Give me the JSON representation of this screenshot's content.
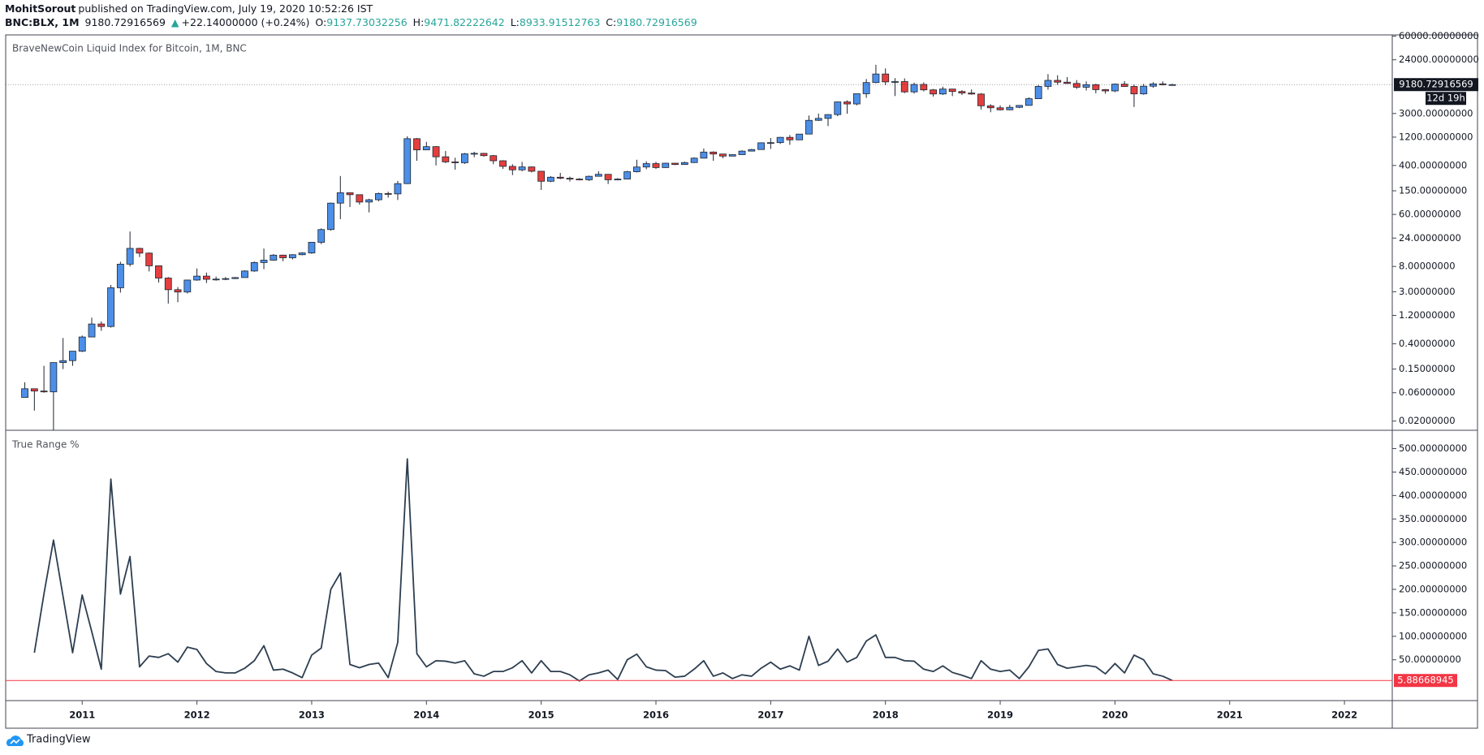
{
  "header": {
    "author": "MohitSorout",
    "published": "published on TradingView.com, July 19, 2020 10:52:26 IST",
    "symbol": "BNC:BLX, 1M",
    "direction": "▲",
    "change": "+22.14000000 (+0.24%)",
    "open_label": "O:",
    "high_label": "H:",
    "low_label": "L:",
    "close_label": "C:"
  },
  "footer": {
    "brand": "TradingView"
  },
  "chart_data": [
    {
      "type": "candlestick",
      "title": "BraveNewCoin Liquid Index for Bitcoin, 1M, BNC",
      "log_scale": true,
      "up_color": "#4c8fe8",
      "down_color": "#e53e3e",
      "outline_color": "#1e2530",
      "countdown_label": "12d 19h",
      "xlim": [
        "2010-05",
        "2022-06"
      ],
      "ylim": [
        0.014,
        63000
      ],
      "yticks": [
        {
          "value": 0.02,
          "label": "0.02000000"
        },
        {
          "value": 0.06,
          "label": "0.06000000"
        },
        {
          "value": 0.15,
          "label": "0.15000000"
        },
        {
          "value": 0.4,
          "label": "0.40000000"
        },
        {
          "value": 1.2,
          "label": "1.20000000"
        },
        {
          "value": 3,
          "label": "3.00000000"
        },
        {
          "value": 8,
          "label": "8.00000000"
        },
        {
          "value": 24,
          "label": "24.00000000"
        },
        {
          "value": 60,
          "label": "60.00000000"
        },
        {
          "value": 150,
          "label": "150.00000000"
        },
        {
          "value": 400,
          "label": "400.00000000"
        },
        {
          "value": 1200,
          "label": "1200.00000000"
        },
        {
          "value": 3000,
          "label": "3000.00000000"
        },
        {
          "value": 24000,
          "label": "24000.00000000"
        },
        {
          "value": 60000,
          "label": "60000.00000000"
        }
      ],
      "x": [
        "2010-07",
        "2010-08",
        "2010-09",
        "2010-10",
        "2010-11",
        "2010-12",
        "2011-01",
        "2011-02",
        "2011-03",
        "2011-04",
        "2011-05",
        "2011-06",
        "2011-07",
        "2011-08",
        "2011-09",
        "2011-10",
        "2011-11",
        "2011-12",
        "2012-01",
        "2012-02",
        "2012-03",
        "2012-04",
        "2012-05",
        "2012-06",
        "2012-07",
        "2012-08",
        "2012-09",
        "2012-10",
        "2012-11",
        "2012-12",
        "2013-01",
        "2013-02",
        "2013-03",
        "2013-04",
        "2013-05",
        "2013-06",
        "2013-07",
        "2013-08",
        "2013-09",
        "2013-10",
        "2013-11",
        "2013-12",
        "2014-01",
        "2014-02",
        "2014-03",
        "2014-04",
        "2014-05",
        "2014-06",
        "2014-07",
        "2014-08",
        "2014-09",
        "2014-10",
        "2014-11",
        "2014-12",
        "2015-01",
        "2015-02",
        "2015-03",
        "2015-04",
        "2015-05",
        "2015-06",
        "2015-07",
        "2015-08",
        "2015-09",
        "2015-10",
        "2015-11",
        "2015-12",
        "2016-01",
        "2016-02",
        "2016-03",
        "2016-04",
        "2016-05",
        "2016-06",
        "2016-07",
        "2016-08",
        "2016-09",
        "2016-10",
        "2016-11",
        "2016-12",
        "2017-01",
        "2017-02",
        "2017-03",
        "2017-04",
        "2017-05",
        "2017-06",
        "2017-07",
        "2017-08",
        "2017-09",
        "2017-10",
        "2017-11",
        "2017-12",
        "2018-01",
        "2018-02",
        "2018-03",
        "2018-04",
        "2018-05",
        "2018-06",
        "2018-07",
        "2018-08",
        "2018-09",
        "2018-10",
        "2018-11",
        "2018-12",
        "2019-01",
        "2019-02",
        "2019-03",
        "2019-04",
        "2019-05",
        "2019-06",
        "2019-07",
        "2019-08",
        "2019-09",
        "2019-10",
        "2019-11",
        "2019-12",
        "2020-01",
        "2020-02",
        "2020-03",
        "2020-04",
        "2020-05",
        "2020-06",
        "2020-07"
      ],
      "open": [
        0.05,
        0.07,
        0.064,
        0.062,
        0.193,
        0.208,
        0.3,
        0.52,
        0.86,
        0.78,
        3.5,
        8.74,
        16.1,
        13.4,
        8.2,
        5.1,
        3.25,
        2.97,
        4.72,
        5.5,
        4.86,
        4.9,
        5,
        5.2,
        6.7,
        9.3,
        10.2,
        12.4,
        11.2,
        12.6,
        13.5,
        20.4,
        33.4,
        93,
        139,
        129,
        97,
        106,
        135,
        133,
        198,
        1130,
        732,
        830,
        560,
        460,
        445,
        628,
        640,
        585,
        480,
        386,
        338,
        378,
        320,
        217,
        254,
        244,
        236,
        230,
        263,
        284,
        230,
        236,
        314,
        377,
        430,
        369,
        437,
        416,
        448,
        531,
        673,
        624,
        575,
        609,
        698,
        742,
        963,
        970,
        1190,
        1080,
        1350,
        2300,
        2480,
        2875,
        4700,
        4340,
        6450,
        9950,
        13850,
        10200,
        10330,
        6930,
        9240,
        7490,
        6390,
        7730,
        7030,
        6630,
        6370,
        4040,
        3740,
        3460,
        3810,
        4100,
        5320,
        8560,
        10820,
        10090,
        9600,
        8290,
        9150,
        7560,
        7190,
        9350,
        8540,
        6410,
        8630,
        9450,
        9137.73032256
      ],
      "high": [
        0.09,
        0.07,
        0.17,
        0.19,
        0.5,
        0.3,
        0.55,
        1.1,
        0.95,
        3.9,
        9.6,
        31,
        16.5,
        13.8,
        8.3,
        5.3,
        3.6,
        4.8,
        7.4,
        6.3,
        5.4,
        5.3,
        5.3,
        6.9,
        9.7,
        16,
        12.9,
        12.6,
        12.8,
        13.9,
        20.5,
        35,
        95,
        266,
        140,
        130,
        110,
        140,
        145,
        220,
        1240,
        1160,
        1000,
        850,
        700,
        540,
        650,
        680,
        650,
        600,
        490,
        420,
        460,
        385,
        320,
        265,
        300,
        260,
        245,
        270,
        320,
        285,
        245,
        325,
        500,
        470,
        460,
        445,
        440,
        465,
        550,
        770,
        690,
        630,
        610,
        720,
        760,
        980,
        1160,
        1210,
        1300,
        1360,
        2770,
        2990,
        2920,
        4750,
        5000,
        6450,
        11400,
        19800,
        17200,
        11800,
        11700,
        9900,
        10000,
        7760,
        8480,
        7750,
        7400,
        7600,
        6600,
        4300,
        4100,
        4200,
        4150,
        5620,
        9060,
        13800,
        13200,
        12300,
        10950,
        10400,
        9500,
        7750,
        9600,
        10500,
        9180,
        9450,
        10070,
        10400,
        9471.82222642
      ],
      "low": [
        0.05,
        0.03,
        0.06,
        0.01,
        0.15,
        0.17,
        0.29,
        0.52,
        0.66,
        0.75,
        2.9,
        8,
        11.5,
        6.6,
        4.3,
        1.9,
        2,
        2.8,
        4.6,
        4.2,
        4.6,
        4.7,
        4.9,
        5.2,
        6.5,
        7.2,
        10,
        9.8,
        10.5,
        12.3,
        13,
        19,
        32,
        50,
        80,
        88,
        65,
        100,
        115,
        105,
        195,
        480,
        725,
        400,
        440,
        340,
        425,
        550,
        565,
        420,
        350,
        275,
        320,
        305,
        155,
        210,
        235,
        215,
        225,
        220,
        260,
        195,
        225,
        235,
        305,
        345,
        350,
        365,
        405,
        410,
        440,
        525,
        480,
        530,
        570,
        605,
        690,
        740,
        760,
        920,
        890,
        1070,
        1340,
        2250,
        1840,
        2700,
        2970,
        4110,
        5500,
        9700,
        9000,
        5900,
        6600,
        6500,
        7050,
        5780,
        6150,
        5880,
        6130,
        6200,
        3500,
        3150,
        3370,
        3400,
        3700,
        4070,
        5320,
        7550,
        9100,
        9400,
        7770,
        7300,
        6550,
        6450,
        6860,
        8450,
        3860,
        6200,
        8130,
        8900,
        8933.91512763
      ],
      "close": [
        0.07,
        0.064,
        0.062,
        0.193,
        0.208,
        0.3,
        0.52,
        0.86,
        0.78,
        3.5,
        8.74,
        16.1,
        13.4,
        8.2,
        5.1,
        3.25,
        2.97,
        4.72,
        5.5,
        4.86,
        4.9,
        5,
        5.2,
        6.7,
        9.3,
        10.2,
        12.4,
        11.2,
        12.6,
        13.5,
        20.4,
        33.4,
        93,
        139,
        129,
        97,
        106,
        135,
        133,
        198,
        1130,
        732,
        830,
        560,
        460,
        445,
        628,
        640,
        585,
        480,
        386,
        338,
        378,
        320,
        217,
        254,
        244,
        236,
        230,
        263,
        284,
        230,
        236,
        314,
        377,
        430,
        369,
        437,
        416,
        448,
        531,
        673,
        624,
        575,
        609,
        698,
        742,
        963,
        970,
        1190,
        1080,
        1350,
        2300,
        2480,
        2875,
        4700,
        4340,
        6450,
        9950,
        13850,
        10200,
        10330,
        6930,
        9240,
        7490,
        6390,
        7730,
        7030,
        6630,
        6370,
        4040,
        3740,
        3460,
        3810,
        4100,
        5320,
        8560,
        10820,
        10090,
        9600,
        8290,
        9150,
        7560,
        7190,
        9350,
        8540,
        6410,
        8630,
        9450,
        9137.73032256,
        9180.72916569
      ]
    },
    {
      "type": "line",
      "title": "True Range %",
      "color": "#2d3e50",
      "last_value_color": "#f23645",
      "xlim": [
        "2010-05",
        "2022-06"
      ],
      "ylim": [
        -37,
        539
      ],
      "xticks": [
        {
          "value": "2011-01",
          "label": "2011"
        },
        {
          "value": "2012-01",
          "label": "2012"
        },
        {
          "value": "2013-01",
          "label": "2013"
        },
        {
          "value": "2014-01",
          "label": "2014"
        },
        {
          "value": "2015-01",
          "label": "2015"
        },
        {
          "value": "2016-01",
          "label": "2016"
        },
        {
          "value": "2017-01",
          "label": "2017"
        },
        {
          "value": "2018-01",
          "label": "2018"
        },
        {
          "value": "2019-01",
          "label": "2019"
        },
        {
          "value": "2020-01",
          "label": "2020"
        },
        {
          "value": "2021-01",
          "label": "2021"
        },
        {
          "value": "2022-01",
          "label": "2022"
        }
      ],
      "yticks": [
        {
          "value": 50,
          "label": "50.00000000"
        },
        {
          "value": 100,
          "label": "100.00000000"
        },
        {
          "value": 150,
          "label": "150.00000000"
        },
        {
          "value": 200,
          "label": "200.00000000"
        },
        {
          "value": 250,
          "label": "250.00000000"
        },
        {
          "value": 300,
          "label": "300.00000000"
        },
        {
          "value": 350,
          "label": "350.00000000"
        },
        {
          "value": 400,
          "label": "400.00000000"
        },
        {
          "value": 450,
          "label": "450.00000000"
        },
        {
          "value": 500,
          "label": "500.00000000"
        }
      ],
      "x": [
        "2010-07",
        "2010-08",
        "2010-09",
        "2010-10",
        "2010-11",
        "2010-12",
        "2011-01",
        "2011-02",
        "2011-03",
        "2011-04",
        "2011-05",
        "2011-06",
        "2011-07",
        "2011-08",
        "2011-09",
        "2011-10",
        "2011-11",
        "2011-12",
        "2012-01",
        "2012-02",
        "2012-03",
        "2012-04",
        "2012-05",
        "2012-06",
        "2012-07",
        "2012-08",
        "2012-09",
        "2012-10",
        "2012-11",
        "2012-12",
        "2013-01",
        "2013-02",
        "2013-03",
        "2013-04",
        "2013-05",
        "2013-06",
        "2013-07",
        "2013-08",
        "2013-09",
        "2013-10",
        "2013-11",
        "2013-12",
        "2014-01",
        "2014-02",
        "2014-03",
        "2014-04",
        "2014-05",
        "2014-06",
        "2014-07",
        "2014-08",
        "2014-09",
        "2014-10",
        "2014-11",
        "2014-12",
        "2015-01",
        "2015-02",
        "2015-03",
        "2015-04",
        "2015-05",
        "2015-06",
        "2015-07",
        "2015-08",
        "2015-09",
        "2015-10",
        "2015-11",
        "2015-12",
        "2016-01",
        "2016-02",
        "2016-03",
        "2016-04",
        "2016-05",
        "2016-06",
        "2016-07",
        "2016-08",
        "2016-09",
        "2016-10",
        "2016-11",
        "2016-12",
        "2017-01",
        "2017-02",
        "2017-03",
        "2017-04",
        "2017-05",
        "2017-06",
        "2017-07",
        "2017-08",
        "2017-09",
        "2017-10",
        "2017-11",
        "2017-12",
        "2018-01",
        "2018-02",
        "2018-03",
        "2018-04",
        "2018-05",
        "2018-06",
        "2018-07",
        "2018-08",
        "2018-09",
        "2018-10",
        "2018-11",
        "2018-12",
        "2019-01",
        "2019-02",
        "2019-03",
        "2019-04",
        "2019-05",
        "2019-06",
        "2019-07",
        "2019-08",
        "2019-09",
        "2019-10",
        "2019-11",
        "2019-12",
        "2020-01",
        "2020-02",
        "2020-03",
        "2020-04",
        "2020-05",
        "2020-06",
        "2020-07"
      ],
      "values": [
        null,
        65,
        190,
        305,
        185,
        65,
        188,
        110,
        30,
        435,
        190,
        270,
        35,
        58,
        55,
        63,
        45,
        77,
        72,
        42,
        25,
        22,
        22,
        32,
        48,
        80,
        28,
        30,
        22,
        12,
        60,
        75,
        200,
        235,
        40,
        33,
        40,
        43,
        12,
        87,
        478,
        63,
        35,
        48,
        47,
        43,
        48,
        20,
        15,
        25,
        25,
        33,
        48,
        22,
        48,
        25,
        25,
        18,
        5,
        18,
        22,
        28,
        8,
        50,
        62,
        35,
        28,
        27,
        13,
        15,
        30,
        48,
        15,
        22,
        10,
        18,
        15,
        32,
        45,
        30,
        37,
        28,
        100,
        38,
        47,
        73,
        45,
        55,
        90,
        103,
        55,
        55,
        48,
        47,
        30,
        25,
        37,
        23,
        17,
        10,
        48,
        30,
        25,
        28,
        10,
        35,
        70,
        73,
        40,
        32,
        35,
        38,
        35,
        20,
        42,
        22,
        60,
        50,
        20,
        15,
        5.88668945
      ]
    }
  ]
}
